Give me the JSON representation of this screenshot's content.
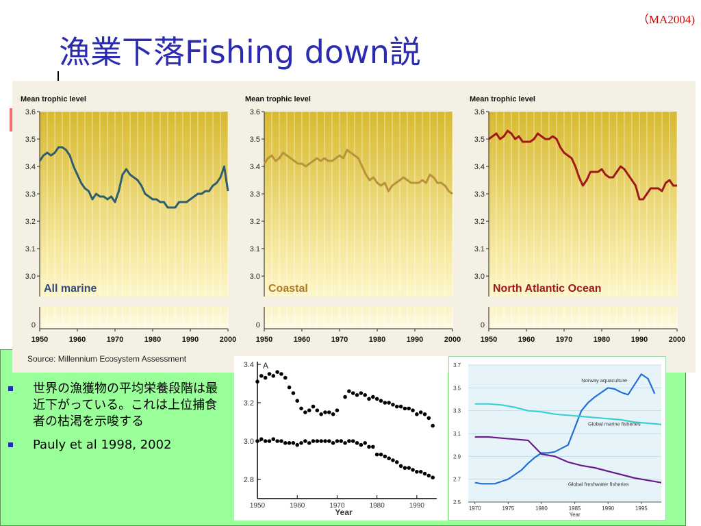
{
  "slide": {
    "citation": "（MA2004)",
    "title": "漁業下落Fishing down説",
    "source": "Source: Millennium Ecosystem Assessment",
    "bullets": [
      "世界の漁獲物の平均栄養段階は最近下がっている。これは上位捕食者の枯渇を示唆する",
      "Pauly et al 1998, 2002"
    ],
    "colors": {
      "title": "#2b2bb0",
      "citation": "#d60000",
      "panel": "#99ff99",
      "chart_bg_top": "#d8b92e",
      "chart_bg_bottom": "#fdf6cc"
    }
  },
  "chart_data": [
    {
      "type": "line",
      "ylabel": "Mean trophic level",
      "region_label": "All marine",
      "ylim": [
        3.0,
        3.6
      ],
      "yticks": [
        "3.6",
        "3.5",
        "3.4",
        "3.3",
        "3.2",
        "3.1",
        "3.0"
      ],
      "zero_tick": "0",
      "xticks": [
        "1950",
        "1960",
        "1970",
        "1980",
        "1990",
        "2000"
      ],
      "color": "#2e5e6e",
      "label_color": "#2e4a7a",
      "series": [
        {
          "x": [
            1950,
            1951,
            1952,
            1953,
            1954,
            1955,
            1956,
            1957,
            1958,
            1959,
            1960,
            1961,
            1962,
            1963,
            1964,
            1965,
            1966,
            1967,
            1968,
            1969,
            1970,
            1971,
            1972,
            1973,
            1974,
            1975,
            1976,
            1977,
            1978,
            1979,
            1980,
            1981,
            1982,
            1983,
            1984,
            1985,
            1986,
            1987,
            1988,
            1989,
            1990,
            1991,
            1992,
            1993,
            1994,
            1995,
            1996,
            1997,
            1998,
            1999,
            2000
          ],
          "values": [
            3.42,
            3.44,
            3.45,
            3.44,
            3.45,
            3.47,
            3.47,
            3.46,
            3.44,
            3.4,
            3.37,
            3.34,
            3.32,
            3.31,
            3.28,
            3.3,
            3.29,
            3.29,
            3.28,
            3.29,
            3.27,
            3.31,
            3.37,
            3.39,
            3.37,
            3.36,
            3.35,
            3.33,
            3.3,
            3.29,
            3.28,
            3.28,
            3.27,
            3.27,
            3.25,
            3.25,
            3.25,
            3.27,
            3.27,
            3.27,
            3.28,
            3.29,
            3.3,
            3.3,
            3.31,
            3.31,
            3.33,
            3.34,
            3.36,
            3.4,
            3.31
          ]
        }
      ]
    },
    {
      "type": "line",
      "ylabel": "Mean trophic level",
      "region_label": "Coastal",
      "ylim": [
        3.0,
        3.6
      ],
      "yticks": [
        "3.6",
        "3.5",
        "3.4",
        "3.3",
        "3.2",
        "3.1",
        "3.0"
      ],
      "zero_tick": "0",
      "xticks": [
        "1950",
        "1960",
        "1970",
        "1980",
        "1990",
        "2000"
      ],
      "color": "#b8933a",
      "label_color": "#b07a20",
      "series": [
        {
          "x": [
            1950,
            1951,
            1952,
            1953,
            1954,
            1955,
            1956,
            1957,
            1958,
            1959,
            1960,
            1961,
            1962,
            1963,
            1964,
            1965,
            1966,
            1967,
            1968,
            1969,
            1970,
            1971,
            1972,
            1973,
            1974,
            1975,
            1976,
            1977,
            1978,
            1979,
            1980,
            1981,
            1982,
            1983,
            1984,
            1985,
            1986,
            1987,
            1988,
            1989,
            1990,
            1991,
            1992,
            1993,
            1994,
            1995,
            1996,
            1997,
            1998,
            1999,
            2000
          ],
          "values": [
            3.41,
            3.43,
            3.44,
            3.42,
            3.43,
            3.45,
            3.44,
            3.43,
            3.42,
            3.41,
            3.41,
            3.4,
            3.41,
            3.42,
            3.43,
            3.42,
            3.43,
            3.42,
            3.42,
            3.43,
            3.44,
            3.43,
            3.46,
            3.45,
            3.44,
            3.43,
            3.4,
            3.37,
            3.35,
            3.36,
            3.34,
            3.33,
            3.34,
            3.31,
            3.33,
            3.34,
            3.35,
            3.36,
            3.35,
            3.34,
            3.34,
            3.34,
            3.35,
            3.34,
            3.37,
            3.36,
            3.34,
            3.34,
            3.33,
            3.31,
            3.3
          ]
        }
      ]
    },
    {
      "type": "line",
      "ylabel": "Mean trophic level",
      "region_label": "North Atlantic Ocean",
      "ylim": [
        3.0,
        3.6
      ],
      "yticks": [
        "3.6",
        "3.5",
        "3.4",
        "3.3",
        "3.2",
        "3.1",
        "3.0"
      ],
      "zero_tick": "0",
      "xticks": [
        "1950",
        "1960",
        "1970",
        "1980",
        "1990",
        "2000"
      ],
      "color": "#a01818",
      "label_color": "#a01818",
      "series": [
        {
          "x": [
            1950,
            1951,
            1952,
            1953,
            1954,
            1955,
            1956,
            1957,
            1958,
            1959,
            1960,
            1961,
            1962,
            1963,
            1964,
            1965,
            1966,
            1967,
            1968,
            1969,
            1970,
            1971,
            1972,
            1973,
            1974,
            1975,
            1976,
            1977,
            1978,
            1979,
            1980,
            1981,
            1982,
            1983,
            1984,
            1985,
            1986,
            1987,
            1988,
            1989,
            1990,
            1991,
            1992,
            1993,
            1994,
            1995,
            1996,
            1997,
            1998,
            1999,
            2000
          ],
          "values": [
            3.5,
            3.51,
            3.52,
            3.5,
            3.51,
            3.53,
            3.52,
            3.5,
            3.51,
            3.49,
            3.49,
            3.49,
            3.5,
            3.52,
            3.51,
            3.5,
            3.5,
            3.51,
            3.5,
            3.47,
            3.45,
            3.44,
            3.43,
            3.4,
            3.36,
            3.33,
            3.35,
            3.38,
            3.38,
            3.38,
            3.39,
            3.37,
            3.36,
            3.36,
            3.38,
            3.4,
            3.39,
            3.37,
            3.35,
            3.33,
            3.28,
            3.28,
            3.3,
            3.32,
            3.32,
            3.32,
            3.31,
            3.34,
            3.35,
            3.33,
            3.33
          ]
        }
      ]
    },
    {
      "type": "scatter",
      "xlabel": "Year",
      "ylim": [
        2.7,
        3.4
      ],
      "yticks": [
        "3.4",
        "3.2",
        "3.0",
        "2.8"
      ],
      "xticks": [
        "1950",
        "1960",
        "1970",
        "1980",
        "1990"
      ],
      "panel_label": "A",
      "series": [
        {
          "x": [
            1950,
            1951,
            1952,
            1953,
            1954,
            1955,
            1956,
            1957,
            1958,
            1959,
            1960,
            1961,
            1962,
            1963,
            1964,
            1965,
            1966,
            1967,
            1968,
            1969,
            1970,
            1972,
            1973,
            1974,
            1975,
            1976,
            1977,
            1978,
            1979,
            1980,
            1981,
            1982,
            1983,
            1984,
            1985,
            1986,
            1987,
            1988,
            1989,
            1990,
            1991,
            1992,
            1993,
            1994
          ],
          "values": [
            3.31,
            3.34,
            3.33,
            3.35,
            3.34,
            3.36,
            3.35,
            3.33,
            3.28,
            3.25,
            3.21,
            3.17,
            3.15,
            3.16,
            3.18,
            3.16,
            3.14,
            3.15,
            3.15,
            3.14,
            3.16,
            3.23,
            3.26,
            3.25,
            3.24,
            3.25,
            3.24,
            3.22,
            3.23,
            3.22,
            3.21,
            3.2,
            3.2,
            3.19,
            3.18,
            3.18,
            3.17,
            3.17,
            3.16,
            3.14,
            3.15,
            3.14,
            3.12,
            3.08
          ]
        },
        {
          "x": [
            1950,
            1951,
            1952,
            1953,
            1954,
            1955,
            1956,
            1957,
            1958,
            1959,
            1960,
            1961,
            1962,
            1963,
            1964,
            1965,
            1966,
            1967,
            1968,
            1969,
            1970,
            1971,
            1972,
            1973,
            1974,
            1975,
            1976,
            1977,
            1978,
            1979,
            1980,
            1981,
            1982,
            1983,
            1984,
            1985,
            1986,
            1987,
            1988,
            1989,
            1990,
            1991,
            1992,
            1993,
            1994
          ],
          "values": [
            3.0,
            3.01,
            3.0,
            3.0,
            3.01,
            3.0,
            3.0,
            2.99,
            2.99,
            2.99,
            2.98,
            2.99,
            3.0,
            2.99,
            3.0,
            3.0,
            3.0,
            3.0,
            3.0,
            2.99,
            3.0,
            3.0,
            2.99,
            3.0,
            3.0,
            2.99,
            2.98,
            2.99,
            2.97,
            2.97,
            2.93,
            2.93,
            2.92,
            2.91,
            2.9,
            2.89,
            2.87,
            2.86,
            2.86,
            2.85,
            2.84,
            2.84,
            2.83,
            2.82,
            2.81
          ]
        }
      ]
    },
    {
      "type": "line",
      "xlabel": "Year",
      "ylim": [
        2.5,
        3.7
      ],
      "yticks": [
        "3.7",
        "3.5",
        "3.3",
        "3.1",
        "2.9",
        "2.7",
        "2.5"
      ],
      "xticks": [
        "1970",
        "1975",
        "1980",
        "1985",
        "1990",
        "1995"
      ],
      "series": [
        {
          "name": "Norway aquaculture",
          "color": "#1f6fd6",
          "x": [
            1970,
            1971,
            1972,
            1973,
            1974,
            1975,
            1976,
            1977,
            1978,
            1979,
            1980,
            1981,
            1982,
            1983,
            1984,
            1985,
            1986,
            1987,
            1988,
            1989,
            1990,
            1991,
            1992,
            1993,
            1994,
            1995,
            1996,
            1997
          ],
          "values": [
            2.67,
            2.66,
            2.66,
            2.66,
            2.68,
            2.7,
            2.74,
            2.78,
            2.84,
            2.89,
            2.93,
            2.93,
            2.94,
            2.97,
            3.0,
            3.15,
            3.3,
            3.37,
            3.42,
            3.46,
            3.5,
            3.49,
            3.46,
            3.44,
            3.53,
            3.62,
            3.58,
            3.45
          ]
        },
        {
          "name": "Global marine fisheries",
          "color": "#3ccfd0",
          "x": [
            1970,
            1972,
            1974,
            1976,
            1978,
            1980,
            1982,
            1984,
            1986,
            1988,
            1990,
            1992,
            1994,
            1996,
            1998
          ],
          "values": [
            3.36,
            3.36,
            3.35,
            3.33,
            3.3,
            3.29,
            3.27,
            3.26,
            3.25,
            3.24,
            3.23,
            3.22,
            3.2,
            3.19,
            3.18
          ]
        },
        {
          "name": "Global freshwater fisheries",
          "color": "#6a1a8a",
          "x": [
            1970,
            1972,
            1974,
            1976,
            1978,
            1980,
            1982,
            1984,
            1986,
            1988,
            1990,
            1992,
            1994,
            1996,
            1998
          ],
          "values": [
            3.07,
            3.07,
            3.06,
            3.05,
            3.04,
            2.92,
            2.9,
            2.85,
            2.82,
            2.8,
            2.77,
            2.74,
            2.71,
            2.69,
            2.67
          ]
        }
      ]
    }
  ]
}
